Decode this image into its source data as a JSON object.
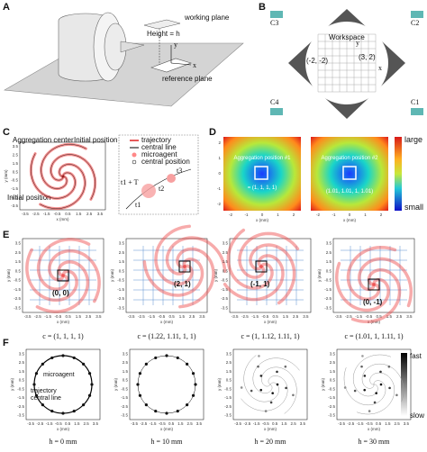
{
  "panel_letters": [
    "A",
    "B",
    "C",
    "D",
    "E",
    "F"
  ],
  "panel_a": {
    "working_plane": "working plane",
    "height": "Height = h",
    "y": "y",
    "x": "x",
    "reference_plane": "reference plane"
  },
  "panel_b": {
    "c3": "C3",
    "c2": "C2",
    "c4": "C4",
    "c1": "C1",
    "workspace": "Workspace",
    "y": "y",
    "x": "x",
    "p1": "(-2, -2)",
    "p2": "(3, 2)"
  },
  "panel_c": {
    "aggregation_center": "Aggregation center",
    "initial_1": "Initial position",
    "initial_2": "Initial position",
    "legend": [
      "trajectory",
      "central line",
      "microagent",
      "central position"
    ],
    "times": [
      "t1 + T",
      "t1",
      "t2",
      "t3"
    ]
  },
  "panel_d": {
    "pos1": "Aggregation position #1",
    "val1": "= (1, 1, 1, 1)",
    "pos2": "Aggregation position #2",
    "val2": "(1.01, 1.01, 1, 1.01)",
    "d_ticks": [
      "-2",
      "-1",
      "0",
      "1",
      "2"
    ],
    "large": "large",
    "small": "small"
  },
  "panel_e": {
    "points": [
      "(0, 0)",
      "(2, 1)",
      "(-1, 1)",
      "(0, -1)"
    ],
    "captions": [
      "c = (1, 1, 1, 1)",
      "c = (1.22, 1.11, 1, 1)",
      "c = (1, 1.12, 1.11, 1)",
      "c = (1.01, 1, 1.11, 1)"
    ]
  },
  "panel_f": {
    "microagent": "microagent",
    "trajectory": "trajectory",
    "central_line": "central line",
    "captions": [
      "h = 0 mm",
      "h = 10 mm",
      "h = 20 mm",
      "h = 30 mm"
    ],
    "fast": "fast",
    "slow": "slow"
  },
  "axes": {
    "ticks": [
      "-3.5",
      "-2.5",
      "-1.5",
      "-0.5",
      "0.5",
      "1.5",
      "2.5",
      "3.5"
    ],
    "x_label": "x (mm)",
    "y_label": "y (mm)"
  }
}
